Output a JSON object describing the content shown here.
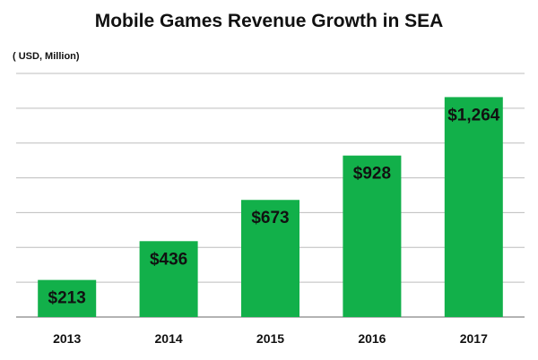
{
  "chart_data": {
    "type": "bar",
    "title": "Mobile Games Revenue  Growth in SEA",
    "unit_label": "( USD, Million)",
    "categories": [
      "2013",
      "2014",
      "2015",
      "2016",
      "2017"
    ],
    "values": [
      213,
      436,
      673,
      928,
      1264
    ],
    "value_labels": [
      "$213",
      "$436",
      "$673",
      "$928",
      "$1,264"
    ],
    "xlabel": "",
    "ylabel": "",
    "ylim": [
      0,
      1400
    ],
    "grid": true,
    "legend": "none",
    "colors": {
      "bar": "#12b04a",
      "grid": "#bdbdbd",
      "axis": "#9a9a9a"
    }
  }
}
